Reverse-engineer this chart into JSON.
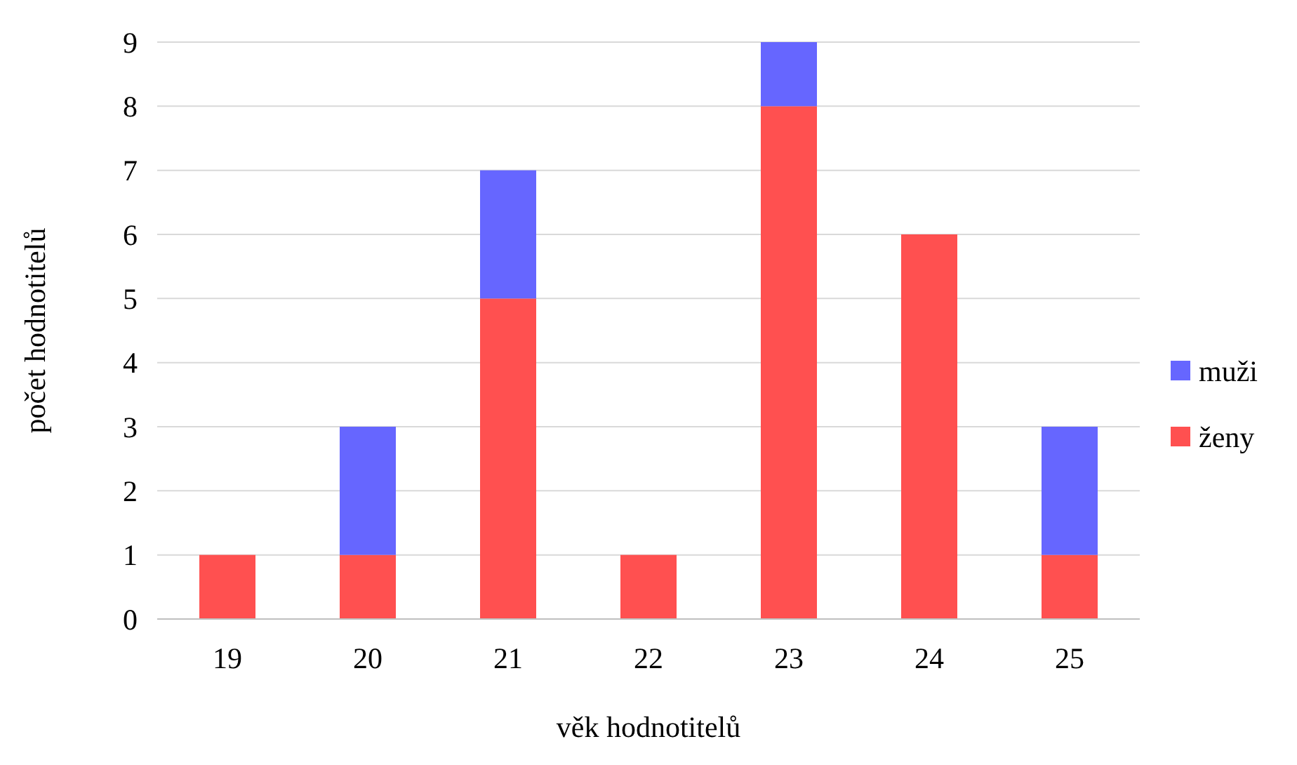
{
  "chart_data": {
    "type": "bar",
    "stacked": true,
    "xlabel": "věk hodnotitelů",
    "ylabel": "počet hodnotitelů",
    "categories": [
      "19",
      "20",
      "21",
      "22",
      "23",
      "24",
      "25"
    ],
    "series": [
      {
        "name": "ženy",
        "color": "#ff5050",
        "values": [
          1,
          1,
          5,
          1,
          8,
          6,
          1
        ]
      },
      {
        "name": "muži",
        "color": "#6666ff",
        "values": [
          null,
          2,
          2,
          null,
          1,
          null,
          2
        ]
      }
    ],
    "ylim": [
      0,
      9
    ],
    "yticks": [
      0,
      1,
      2,
      3,
      4,
      5,
      6,
      7,
      8,
      9
    ],
    "grid": "y",
    "legend": "right"
  }
}
